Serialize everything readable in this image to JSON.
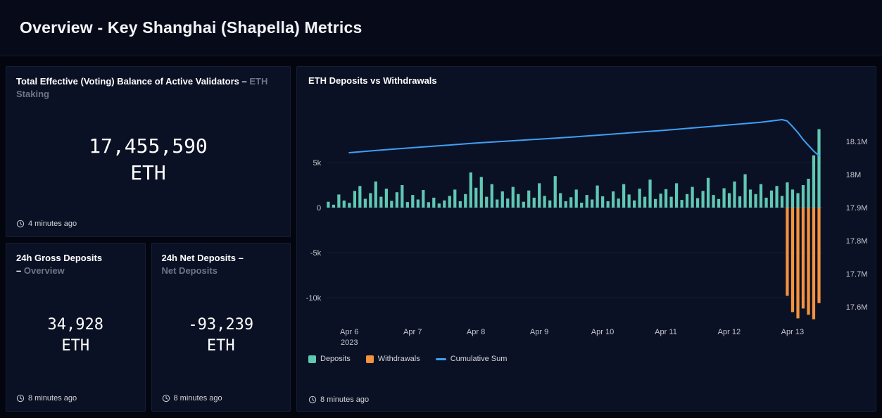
{
  "header": {
    "title": "Overview - Key Shanghai (Shapella) Metrics"
  },
  "cards": [
    {
      "title": "Total Effective (Voting) Balance of Active Validators –",
      "subtitle": "ETH Staking",
      "value": "17,455,590",
      "unit": "ETH",
      "updated": "4 minutes ago"
    },
    {
      "title": "24h Gross Deposits –",
      "subtitle": "Overview",
      "value": "34,928",
      "unit": "ETH",
      "updated": "8 minutes ago"
    },
    {
      "title": "24h Net Deposits –",
      "subtitle": "Net Deposits",
      "value": "-93,239",
      "unit": "ETH",
      "updated": "8 minutes ago"
    }
  ],
  "chart_panel": {
    "title": "ETH Deposits vs Withdrawals",
    "updated": "8 minutes ago",
    "legend": [
      {
        "label": "Deposits",
        "swatch": "deposits"
      },
      {
        "label": "Withdrawals",
        "swatch": "withdrawals"
      },
      {
        "label": "Cumulative Sum",
        "swatch": "cumulative"
      }
    ]
  },
  "chart_data": {
    "type": "bar+line",
    "title": "ETH Deposits vs Withdrawals",
    "x_unit": "2-hour bins, Apr 5 2023 16:00 through Apr 13 2023 ~12:00",
    "x_ticks": [
      {
        "i": 4,
        "label": "Apr 6",
        "sub": "2023"
      },
      {
        "i": 16,
        "label": "Apr 7"
      },
      {
        "i": 28,
        "label": "Apr 8"
      },
      {
        "i": 40,
        "label": "Apr 9"
      },
      {
        "i": 52,
        "label": "Apr 10"
      },
      {
        "i": 64,
        "label": "Apr 11"
      },
      {
        "i": 76,
        "label": "Apr 12"
      },
      {
        "i": 88,
        "label": "Apr 13"
      }
    ],
    "left_axis": {
      "unit": "ETH",
      "range": [
        -13500,
        10500
      ],
      "ticks": [
        {
          "v": 5000,
          "label": "5k"
        },
        {
          "v": 0,
          "label": "0"
        },
        {
          "v": -5000,
          "label": "-5k"
        },
        {
          "v": -10000,
          "label": "-10k"
        }
      ]
    },
    "right_axis": {
      "unit": "ETH (cumulative)",
      "range": [
        17.55,
        18.2
      ],
      "ticks": [
        {
          "v": 18.1,
          "label": "18.1M"
        },
        {
          "v": 18.0,
          "label": "18M"
        },
        {
          "v": 17.9,
          "label": "17.9M"
        },
        {
          "v": 17.8,
          "label": "17.8M"
        },
        {
          "v": 17.7,
          "label": "17.7M"
        },
        {
          "v": 17.6,
          "label": "17.6M"
        }
      ]
    },
    "series": {
      "deposits": [
        650,
        320,
        1450,
        780,
        520,
        1850,
        2400,
        980,
        1600,
        2900,
        1200,
        2100,
        750,
        1700,
        2500,
        620,
        1400,
        900,
        1950,
        600,
        1100,
        450,
        800,
        1300,
        2000,
        700,
        1500,
        3900,
        2200,
        3400,
        1200,
        2600,
        900,
        1800,
        1000,
        2300,
        1500,
        650,
        1900,
        1100,
        2700,
        1300,
        800,
        3500,
        1600,
        700,
        1150,
        2000,
        550,
        1400,
        900,
        2450,
        1250,
        700,
        1800,
        1000,
        2600,
        1450,
        800,
        2100,
        1200,
        3100,
        950,
        1550,
        2050,
        1200,
        2700,
        850,
        1500,
        2300,
        1050,
        1850,
        3300,
        1400,
        950,
        2150,
        1600,
        2900,
        1250,
        3700,
        2000,
        1500,
        2600,
        1100,
        1900,
        2400,
        1300,
        2800,
        2000,
        1600,
        2500,
        3200,
        5800,
        8700
      ],
      "withdrawals": [
        {
          "i": 87,
          "v": -9800
        },
        {
          "i": 88,
          "v": -11600
        },
        {
          "i": 89,
          "v": -12300
        },
        {
          "i": 90,
          "v": -11200
        },
        {
          "i": 91,
          "v": -11900
        },
        {
          "i": 92,
          "v": -12400
        },
        {
          "i": 93,
          "v": -10600
        }
      ],
      "cumulative_sum_M": [
        [
          4,
          18.066
        ],
        [
          10,
          18.074
        ],
        [
          16,
          18.081
        ],
        [
          22,
          18.088
        ],
        [
          28,
          18.095
        ],
        [
          34,
          18.101
        ],
        [
          40,
          18.107
        ],
        [
          46,
          18.113
        ],
        [
          52,
          18.12
        ],
        [
          58,
          18.127
        ],
        [
          64,
          18.134
        ],
        [
          70,
          18.142
        ],
        [
          76,
          18.15
        ],
        [
          82,
          18.158
        ],
        [
          86,
          18.166
        ],
        [
          87,
          18.162
        ],
        [
          88,
          18.145
        ],
        [
          89,
          18.127
        ],
        [
          90,
          18.106
        ],
        [
          91,
          18.088
        ],
        [
          92,
          18.071
        ],
        [
          93,
          18.057
        ]
      ]
    },
    "colors": {
      "deposits": "#5FC8B4",
      "withdrawals": "#F5923E",
      "cumulative": "#3F9FF7",
      "axis_text": "#C4C7CE",
      "grid": "#141B30",
      "zero_line": "#232C48"
    },
    "legend_position": "bottom-left",
    "grid": true
  }
}
